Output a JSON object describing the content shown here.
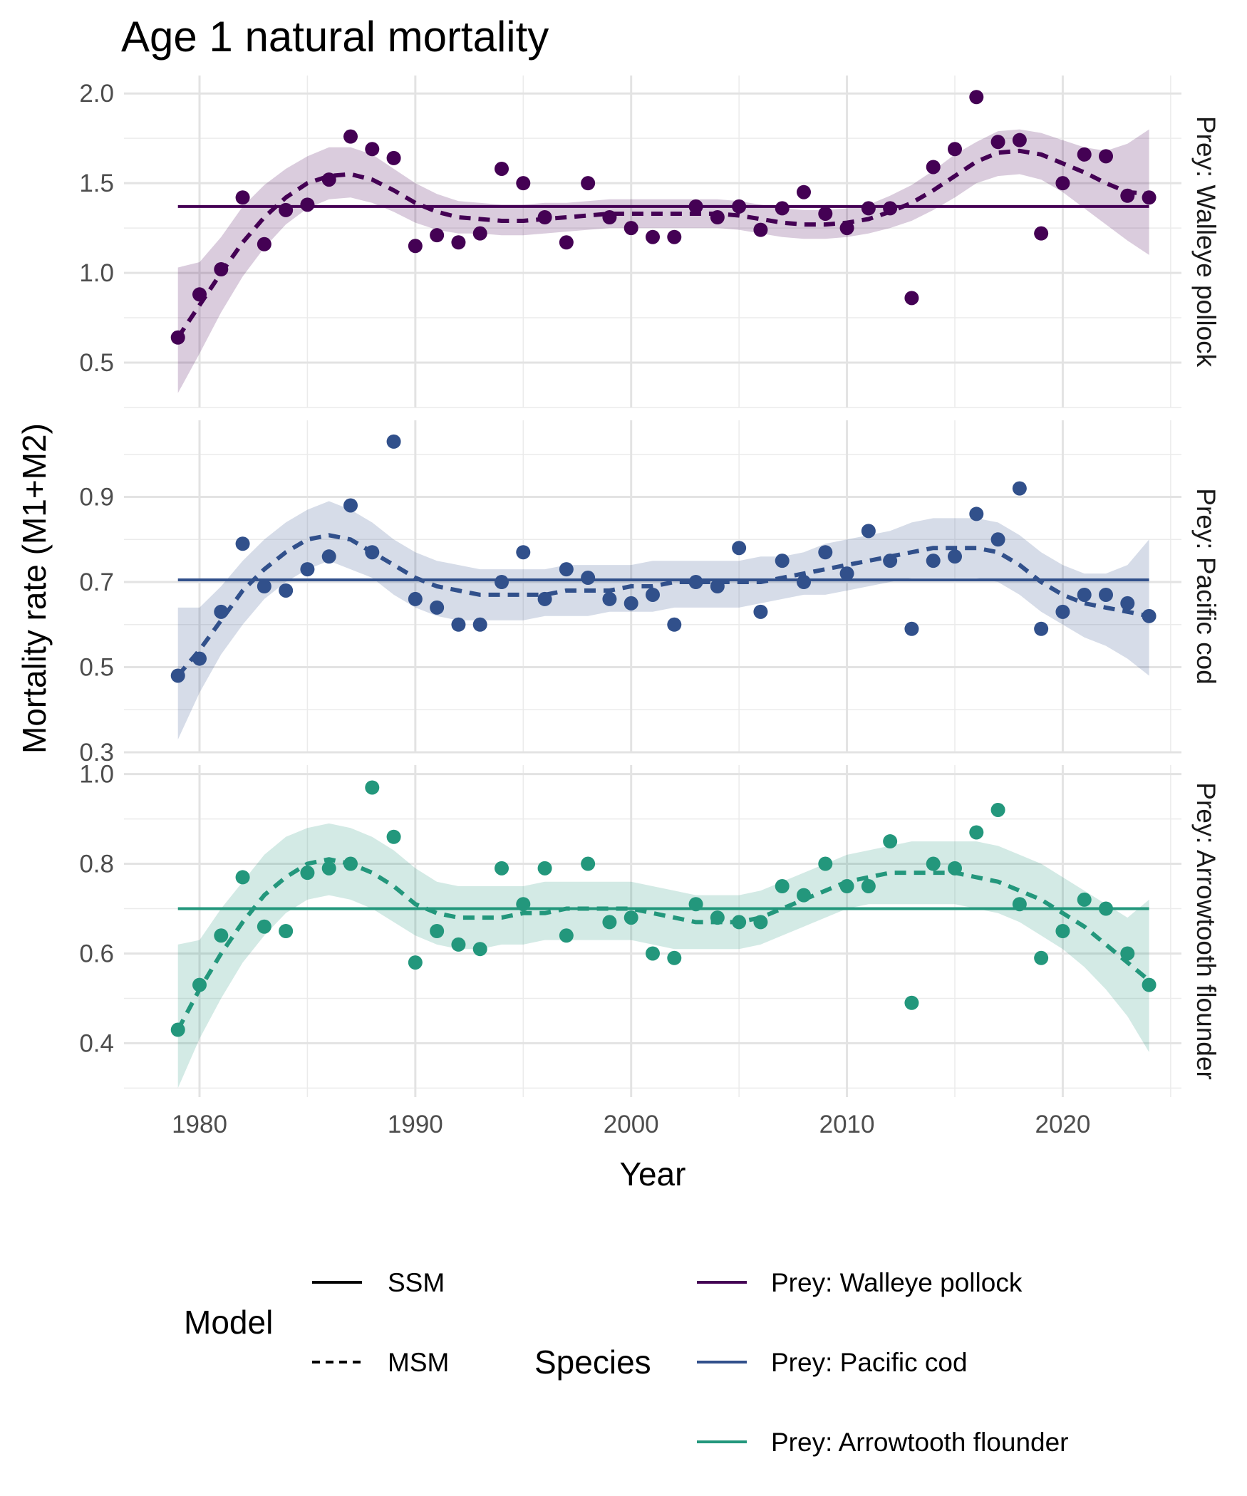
{
  "chart_data": {
    "type": "scatter",
    "title": "Age 1 natural mortality",
    "xlabel": "Year",
    "ylabel": "Mortality rate (M1+M2)",
    "xlim": [
      1976.5,
      2025.5
    ],
    "x_ticks": [
      1980,
      1990,
      2000,
      2010,
      2020
    ],
    "grid": true,
    "legend_position": "bottom",
    "x": [
      1979,
      1980,
      1981,
      1982,
      1983,
      1984,
      1985,
      1986,
      1987,
      1988,
      1989,
      1990,
      1991,
      1992,
      1993,
      1994,
      1995,
      1996,
      1997,
      1998,
      1999,
      2000,
      2001,
      2002,
      2003,
      2004,
      2005,
      2006,
      2007,
      2008,
      2009,
      2010,
      2011,
      2012,
      2013,
      2014,
      2015,
      2016,
      2017,
      2018,
      2019,
      2020,
      2021,
      2022,
      2023,
      2024
    ],
    "panels": [
      {
        "strip": "Prey: Walleye pollock",
        "color": "#440154",
        "ylim": [
          0.25,
          2.1
        ],
        "y_ticks": [
          0.5,
          1.0,
          1.5,
          2.0
        ],
        "y_tick_labels": [
          "0.5",
          "1.0",
          "1.5",
          "2.0"
        ],
        "ssm": 1.37,
        "points": [
          0.64,
          0.88,
          1.02,
          1.42,
          1.16,
          1.35,
          1.38,
          1.52,
          1.76,
          1.69,
          1.64,
          1.15,
          1.21,
          1.17,
          1.22,
          1.58,
          1.5,
          1.31,
          1.17,
          1.5,
          1.31,
          1.25,
          1.2,
          1.2,
          1.37,
          1.31,
          1.37,
          1.24,
          1.36,
          1.45,
          1.33,
          1.25,
          1.36,
          1.36,
          0.86,
          1.59,
          1.69,
          1.98,
          1.73,
          1.74,
          1.22,
          1.5,
          1.66,
          1.65,
          1.43,
          1.42
        ],
        "msm": [
          0.64,
          0.82,
          1.0,
          1.17,
          1.31,
          1.42,
          1.5,
          1.54,
          1.55,
          1.52,
          1.46,
          1.39,
          1.34,
          1.31,
          1.3,
          1.29,
          1.29,
          1.3,
          1.31,
          1.32,
          1.33,
          1.33,
          1.33,
          1.33,
          1.33,
          1.33,
          1.32,
          1.3,
          1.28,
          1.27,
          1.27,
          1.28,
          1.3,
          1.34,
          1.39,
          1.46,
          1.54,
          1.62,
          1.67,
          1.68,
          1.66,
          1.61,
          1.56,
          1.5,
          1.45,
          1.44
        ],
        "msm_lower": [
          0.33,
          0.55,
          0.78,
          0.98,
          1.14,
          1.27,
          1.36,
          1.41,
          1.42,
          1.39,
          1.34,
          1.28,
          1.24,
          1.22,
          1.22,
          1.21,
          1.21,
          1.22,
          1.23,
          1.24,
          1.25,
          1.25,
          1.25,
          1.25,
          1.25,
          1.25,
          1.24,
          1.22,
          1.2,
          1.19,
          1.19,
          1.2,
          1.22,
          1.25,
          1.29,
          1.35,
          1.42,
          1.5,
          1.54,
          1.55,
          1.52,
          1.45,
          1.36,
          1.27,
          1.18,
          1.1
        ],
        "msm_upper": [
          1.03,
          1.06,
          1.2,
          1.37,
          1.49,
          1.58,
          1.65,
          1.7,
          1.7,
          1.66,
          1.58,
          1.5,
          1.44,
          1.4,
          1.39,
          1.38,
          1.38,
          1.39,
          1.39,
          1.4,
          1.41,
          1.41,
          1.41,
          1.41,
          1.41,
          1.41,
          1.4,
          1.38,
          1.36,
          1.35,
          1.35,
          1.36,
          1.38,
          1.43,
          1.49,
          1.57,
          1.66,
          1.73,
          1.79,
          1.8,
          1.78,
          1.74,
          1.7,
          1.68,
          1.72,
          1.8
        ]
      },
      {
        "strip": "Prey: Pacific cod",
        "color": "#31508b",
        "ylim": [
          0.3,
          1.08
        ],
        "y_ticks": [
          0.3,
          0.5,
          0.7,
          0.9
        ],
        "y_tick_labels": [
          "0.3",
          "0.5",
          "0.7",
          "0.9"
        ],
        "ssm": 0.705,
        "points": [
          0.48,
          0.52,
          0.63,
          0.79,
          0.69,
          0.68,
          0.73,
          0.76,
          0.88,
          0.77,
          1.03,
          0.66,
          0.64,
          0.6,
          0.6,
          0.7,
          0.77,
          0.66,
          0.73,
          0.71,
          0.66,
          0.65,
          0.67,
          0.6,
          0.7,
          0.69,
          0.78,
          0.63,
          0.75,
          0.7,
          0.77,
          0.72,
          0.82,
          0.75,
          0.59,
          0.75,
          0.76,
          0.86,
          0.8,
          0.92,
          0.59,
          0.63,
          0.67,
          0.67,
          0.65,
          0.62
        ],
        "msm": [
          0.48,
          0.54,
          0.61,
          0.68,
          0.73,
          0.77,
          0.8,
          0.81,
          0.8,
          0.77,
          0.74,
          0.71,
          0.69,
          0.68,
          0.67,
          0.67,
          0.67,
          0.67,
          0.68,
          0.68,
          0.68,
          0.69,
          0.69,
          0.7,
          0.7,
          0.7,
          0.7,
          0.7,
          0.71,
          0.72,
          0.73,
          0.74,
          0.75,
          0.76,
          0.77,
          0.78,
          0.78,
          0.78,
          0.77,
          0.74,
          0.7,
          0.67,
          0.65,
          0.64,
          0.63,
          0.62
        ],
        "msm_lower": [
          0.33,
          0.44,
          0.53,
          0.6,
          0.66,
          0.7,
          0.73,
          0.75,
          0.73,
          0.71,
          0.67,
          0.64,
          0.62,
          0.61,
          0.61,
          0.61,
          0.61,
          0.62,
          0.62,
          0.62,
          0.63,
          0.63,
          0.63,
          0.64,
          0.64,
          0.64,
          0.64,
          0.65,
          0.66,
          0.67,
          0.67,
          0.68,
          0.69,
          0.7,
          0.71,
          0.71,
          0.71,
          0.71,
          0.7,
          0.67,
          0.63,
          0.6,
          0.57,
          0.55,
          0.52,
          0.48
        ],
        "msm_upper": [
          0.64,
          0.64,
          0.69,
          0.75,
          0.8,
          0.84,
          0.87,
          0.89,
          0.87,
          0.84,
          0.8,
          0.77,
          0.75,
          0.74,
          0.73,
          0.73,
          0.73,
          0.73,
          0.74,
          0.74,
          0.74,
          0.74,
          0.75,
          0.75,
          0.75,
          0.75,
          0.75,
          0.76,
          0.76,
          0.77,
          0.79,
          0.8,
          0.81,
          0.82,
          0.84,
          0.85,
          0.85,
          0.85,
          0.84,
          0.81,
          0.77,
          0.74,
          0.72,
          0.72,
          0.74,
          0.8
        ]
      },
      {
        "strip": "Prey: Arrowtooth flounder",
        "color": "#23977c",
        "ylim": [
          0.28,
          1.02
        ],
        "y_ticks": [
          0.4,
          0.6,
          0.8,
          1.0
        ],
        "y_tick_labels": [
          "0.4",
          "0.6",
          "0.8",
          "1.0"
        ],
        "ssm": 0.7,
        "points": [
          0.43,
          0.53,
          0.64,
          0.77,
          0.66,
          0.65,
          0.78,
          0.79,
          0.8,
          0.97,
          0.86,
          0.58,
          0.65,
          0.62,
          0.61,
          0.79,
          0.71,
          0.79,
          0.64,
          0.8,
          0.67,
          0.68,
          0.6,
          0.59,
          0.71,
          0.68,
          0.67,
          0.67,
          0.75,
          0.73,
          0.8,
          0.75,
          0.75,
          0.85,
          0.49,
          0.8,
          0.79,
          0.87,
          0.92,
          0.71,
          0.59,
          0.65,
          0.72,
          0.7,
          0.6,
          0.53
        ],
        "msm": [
          0.43,
          0.52,
          0.6,
          0.67,
          0.73,
          0.77,
          0.8,
          0.81,
          0.8,
          0.78,
          0.75,
          0.71,
          0.69,
          0.68,
          0.68,
          0.68,
          0.69,
          0.69,
          0.7,
          0.7,
          0.7,
          0.7,
          0.69,
          0.68,
          0.67,
          0.67,
          0.67,
          0.68,
          0.7,
          0.72,
          0.74,
          0.76,
          0.77,
          0.78,
          0.78,
          0.78,
          0.78,
          0.77,
          0.76,
          0.74,
          0.72,
          0.69,
          0.66,
          0.62,
          0.58,
          0.54
        ],
        "msm_lower": [
          0.3,
          0.41,
          0.5,
          0.58,
          0.64,
          0.69,
          0.72,
          0.73,
          0.72,
          0.7,
          0.67,
          0.64,
          0.62,
          0.61,
          0.61,
          0.62,
          0.62,
          0.63,
          0.63,
          0.63,
          0.63,
          0.63,
          0.62,
          0.61,
          0.61,
          0.61,
          0.61,
          0.62,
          0.64,
          0.66,
          0.68,
          0.7,
          0.71,
          0.71,
          0.71,
          0.71,
          0.71,
          0.7,
          0.69,
          0.67,
          0.64,
          0.61,
          0.57,
          0.52,
          0.46,
          0.38
        ],
        "msm_upper": [
          0.62,
          0.63,
          0.7,
          0.76,
          0.82,
          0.86,
          0.88,
          0.89,
          0.88,
          0.86,
          0.83,
          0.79,
          0.76,
          0.75,
          0.75,
          0.75,
          0.75,
          0.76,
          0.76,
          0.76,
          0.76,
          0.76,
          0.75,
          0.74,
          0.73,
          0.73,
          0.73,
          0.74,
          0.76,
          0.78,
          0.8,
          0.82,
          0.83,
          0.84,
          0.85,
          0.85,
          0.85,
          0.85,
          0.84,
          0.82,
          0.8,
          0.77,
          0.74,
          0.71,
          0.68,
          0.72
        ]
      }
    ],
    "legend": {
      "model_title": "Model",
      "model_entries": [
        {
          "label": "SSM",
          "linetype": "solid"
        },
        {
          "label": "MSM",
          "linetype": "dashed"
        }
      ],
      "species_title": "Species",
      "species_entries": [
        {
          "label": "Prey: Walleye pollock",
          "color": "#440154"
        },
        {
          "label": "Prey: Pacific cod",
          "color": "#31508b"
        },
        {
          "label": "Prey: Arrowtooth flounder",
          "color": "#23977c"
        }
      ]
    }
  }
}
